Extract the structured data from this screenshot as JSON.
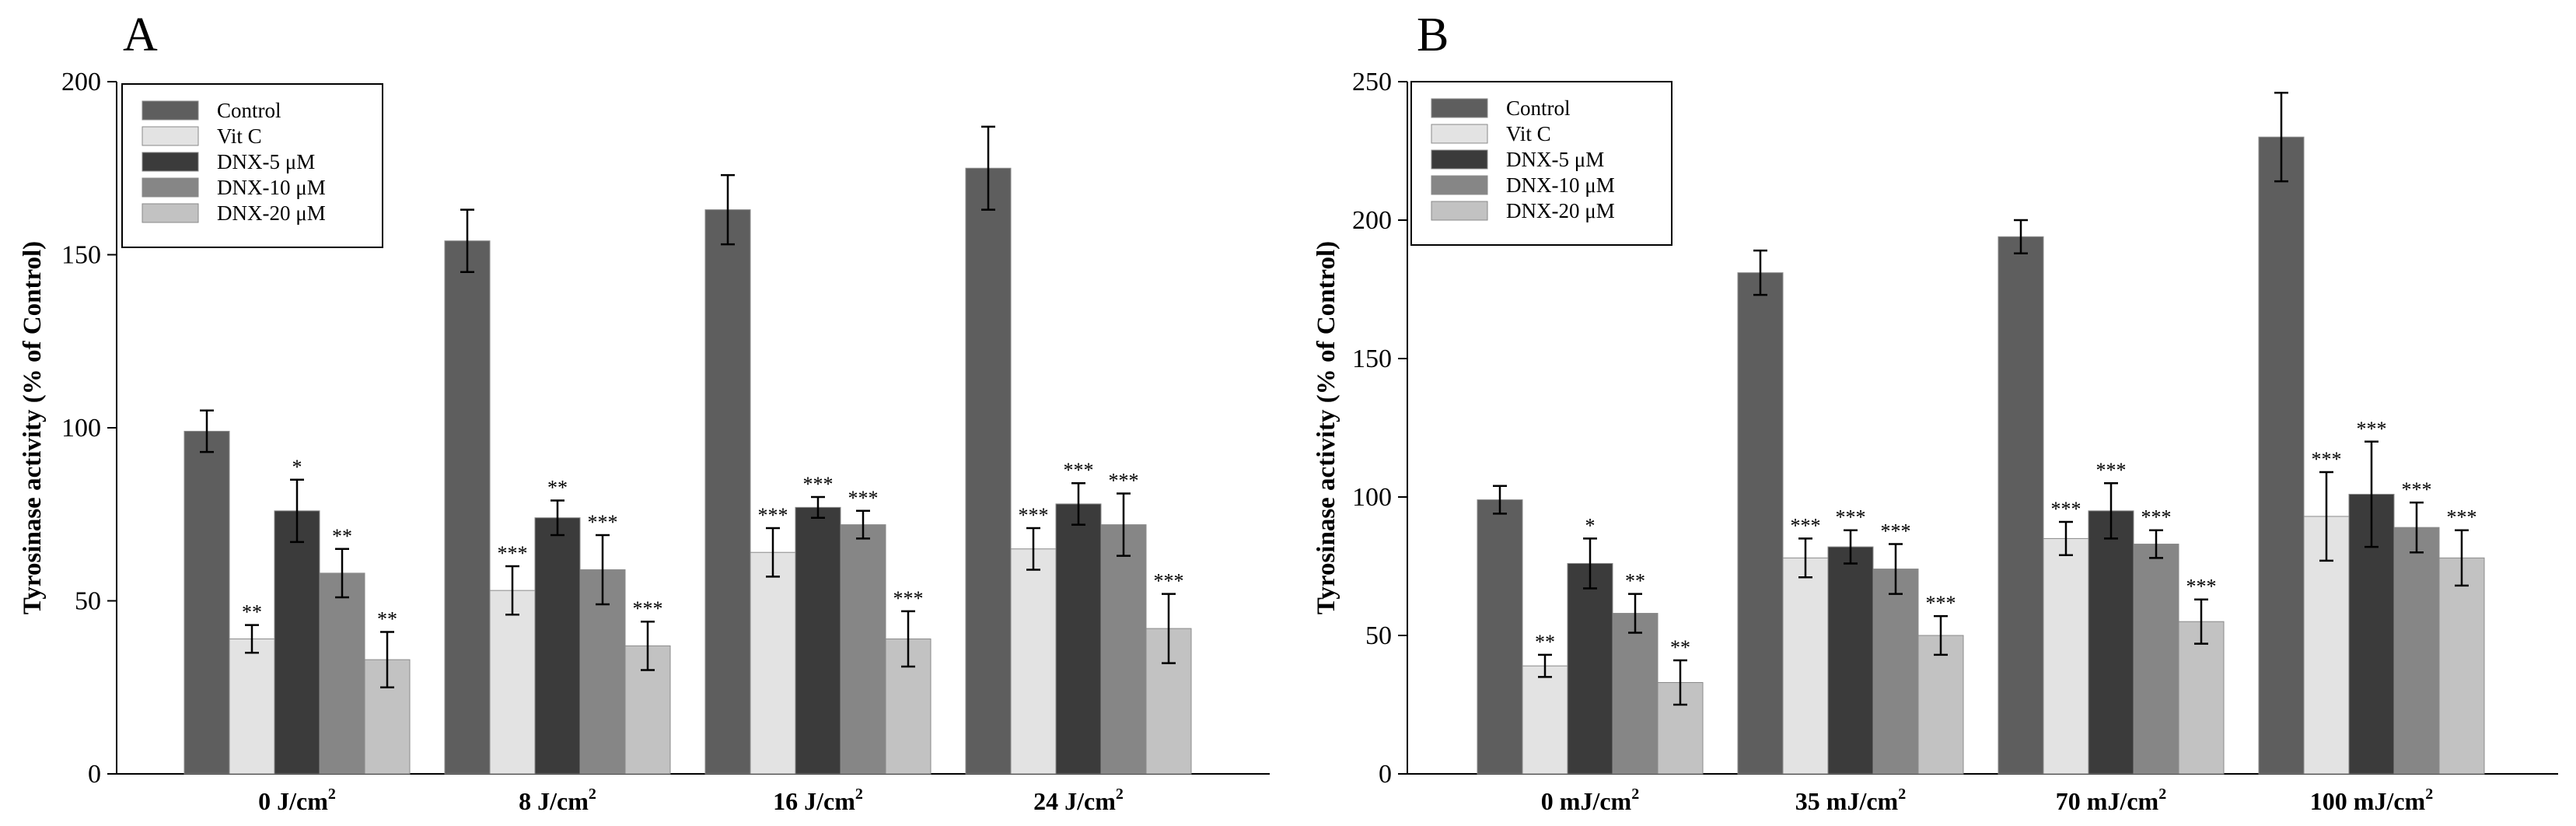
{
  "colors": {
    "Control": "#5e5e5e",
    "Vit C": "#e3e3e3",
    "DNX-5 μM": "#3b3b3b",
    "DNX-10 μM": "#868686",
    "DNX-20 μM": "#c2c2c2"
  },
  "chart_data": [
    {
      "type": "bar",
      "panel": "A",
      "ylabel": "Tyrosinase activity (% of Control)",
      "ylim": [
        0,
        200
      ],
      "yticks": [
        0,
        50,
        100,
        150,
        200
      ],
      "categories": [
        {
          "base": "0 J/cm",
          "sup": "2"
        },
        {
          "base": "8 J/cm",
          "sup": "2"
        },
        {
          "base": "16 J/cm",
          "sup": "2"
        },
        {
          "base": "24 J/cm",
          "sup": "2"
        }
      ],
      "legend_position": "top-left",
      "series": [
        {
          "name": "Control",
          "values": [
            99,
            154,
            163,
            175
          ],
          "errors": [
            6,
            9,
            10,
            12
          ],
          "sig": [
            "",
            "",
            "",
            ""
          ]
        },
        {
          "name": "Vit C",
          "values": [
            39,
            53,
            64,
            65
          ],
          "errors": [
            4,
            7,
            7,
            6
          ],
          "sig": [
            "**",
            "***",
            "***",
            "***"
          ]
        },
        {
          "name": "DNX-5 μM",
          "values": [
            76,
            74,
            77,
            78
          ],
          "errors": [
            9,
            5,
            3,
            6
          ],
          "sig": [
            "*",
            "**",
            "***",
            "***"
          ]
        },
        {
          "name": "DNX-10 μM",
          "values": [
            58,
            59,
            72,
            72
          ],
          "errors": [
            7,
            10,
            4,
            9
          ],
          "sig": [
            "**",
            "***",
            "***",
            "***"
          ]
        },
        {
          "name": "DNX-20 μM",
          "values": [
            33,
            37,
            39,
            42
          ],
          "errors": [
            8,
            7,
            8,
            10
          ],
          "sig": [
            "**",
            "***",
            "***",
            "***"
          ]
        }
      ]
    },
    {
      "type": "bar",
      "panel": "B",
      "ylabel": "Tyrosinase activity (% of Control)",
      "ylim": [
        0,
        250
      ],
      "yticks": [
        0,
        50,
        100,
        150,
        200,
        250
      ],
      "categories": [
        {
          "base": "0 mJ/cm",
          "sup": "2"
        },
        {
          "base": "35 mJ/cm",
          "sup": "2"
        },
        {
          "base": "70 mJ/cm",
          "sup": "2"
        },
        {
          "base": "100 mJ/cm",
          "sup": "2"
        }
      ],
      "legend_position": "top-left",
      "series": [
        {
          "name": "Control",
          "values": [
            99,
            181,
            194,
            230
          ],
          "errors": [
            5,
            8,
            6,
            16
          ],
          "sig": [
            "",
            "",
            "",
            ""
          ]
        },
        {
          "name": "Vit C",
          "values": [
            39,
            78,
            85,
            93
          ],
          "errors": [
            4,
            7,
            6,
            16
          ],
          "sig": [
            "**",
            "***",
            "***",
            "***"
          ]
        },
        {
          "name": "DNX-5 μM",
          "values": [
            76,
            82,
            95,
            101
          ],
          "errors": [
            9,
            6,
            10,
            19
          ],
          "sig": [
            "*",
            "***",
            "***",
            "***"
          ]
        },
        {
          "name": "DNX-10 μM",
          "values": [
            58,
            74,
            83,
            89
          ],
          "errors": [
            7,
            9,
            5,
            9
          ],
          "sig": [
            "**",
            "***",
            "***",
            "***"
          ]
        },
        {
          "name": "DNX-20 μM",
          "values": [
            33,
            50,
            55,
            78
          ],
          "errors": [
            8,
            7,
            8,
            10
          ],
          "sig": [
            "**",
            "***",
            "***",
            "***"
          ]
        }
      ]
    }
  ]
}
